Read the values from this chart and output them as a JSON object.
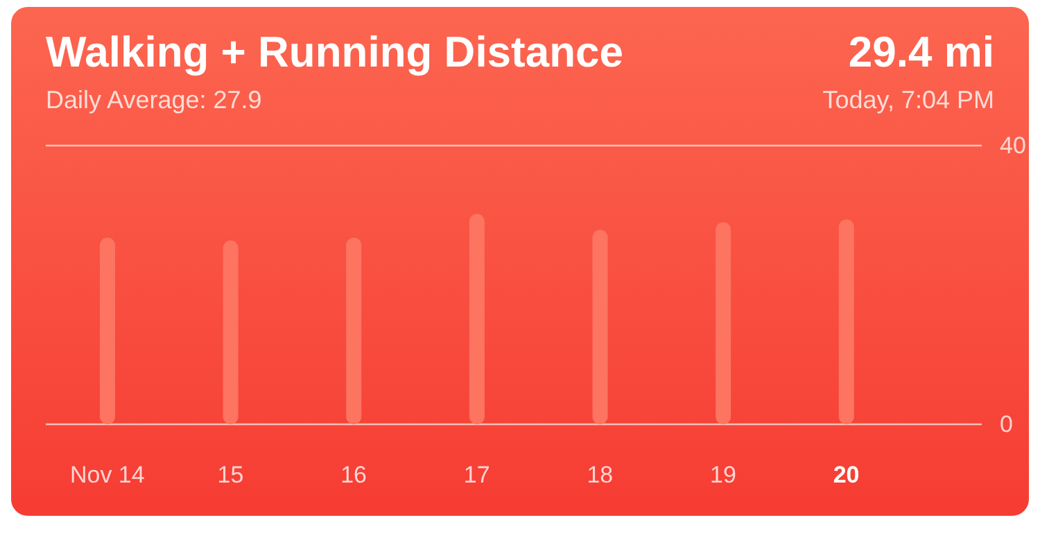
{
  "chart_data": {
    "type": "bar",
    "title": "Walking + Running Distance",
    "subtitle": "Daily Average: 27.9",
    "annotations": [
      "29.4 mi",
      "Today, 7:04 PM"
    ],
    "categories": [
      "Nov 14",
      "15",
      "16",
      "17",
      "18",
      "19",
      "20"
    ],
    "values": [
      26.8,
      26.4,
      26.8,
      30.2,
      27.9,
      29.0,
      29.4
    ],
    "color": "#fd7461",
    "ylim": [
      0,
      40
    ],
    "yticks": [
      0,
      40
    ]
  }
}
